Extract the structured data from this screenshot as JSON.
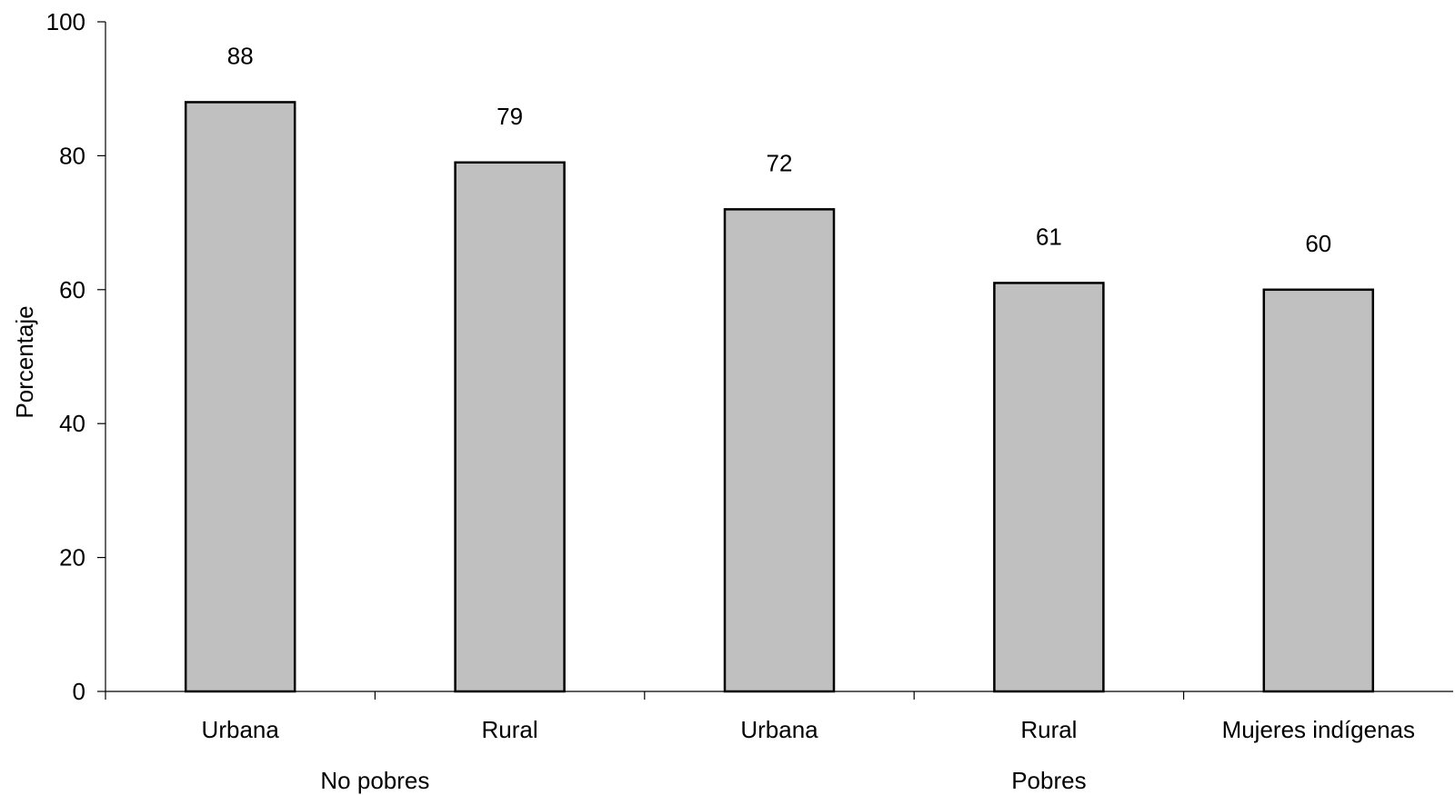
{
  "chart_data": {
    "type": "bar",
    "title": "",
    "xlabel": "",
    "ylabel": "Porcentaje",
    "ylim": [
      0,
      100
    ],
    "yticks": [
      0,
      20,
      40,
      60,
      80,
      100
    ],
    "grid": false,
    "bar_color": "#c0c0c0",
    "categories": [
      "Urbana",
      "Rural",
      "Urbana",
      "Rural",
      "Mujeres indígenas"
    ],
    "values": [
      88,
      79,
      72,
      61,
      60
    ],
    "groups": [
      {
        "label": "No pobres",
        "members": [
          0,
          1
        ]
      },
      {
        "label": "Pobres",
        "members": [
          2,
          3,
          4
        ]
      }
    ]
  }
}
